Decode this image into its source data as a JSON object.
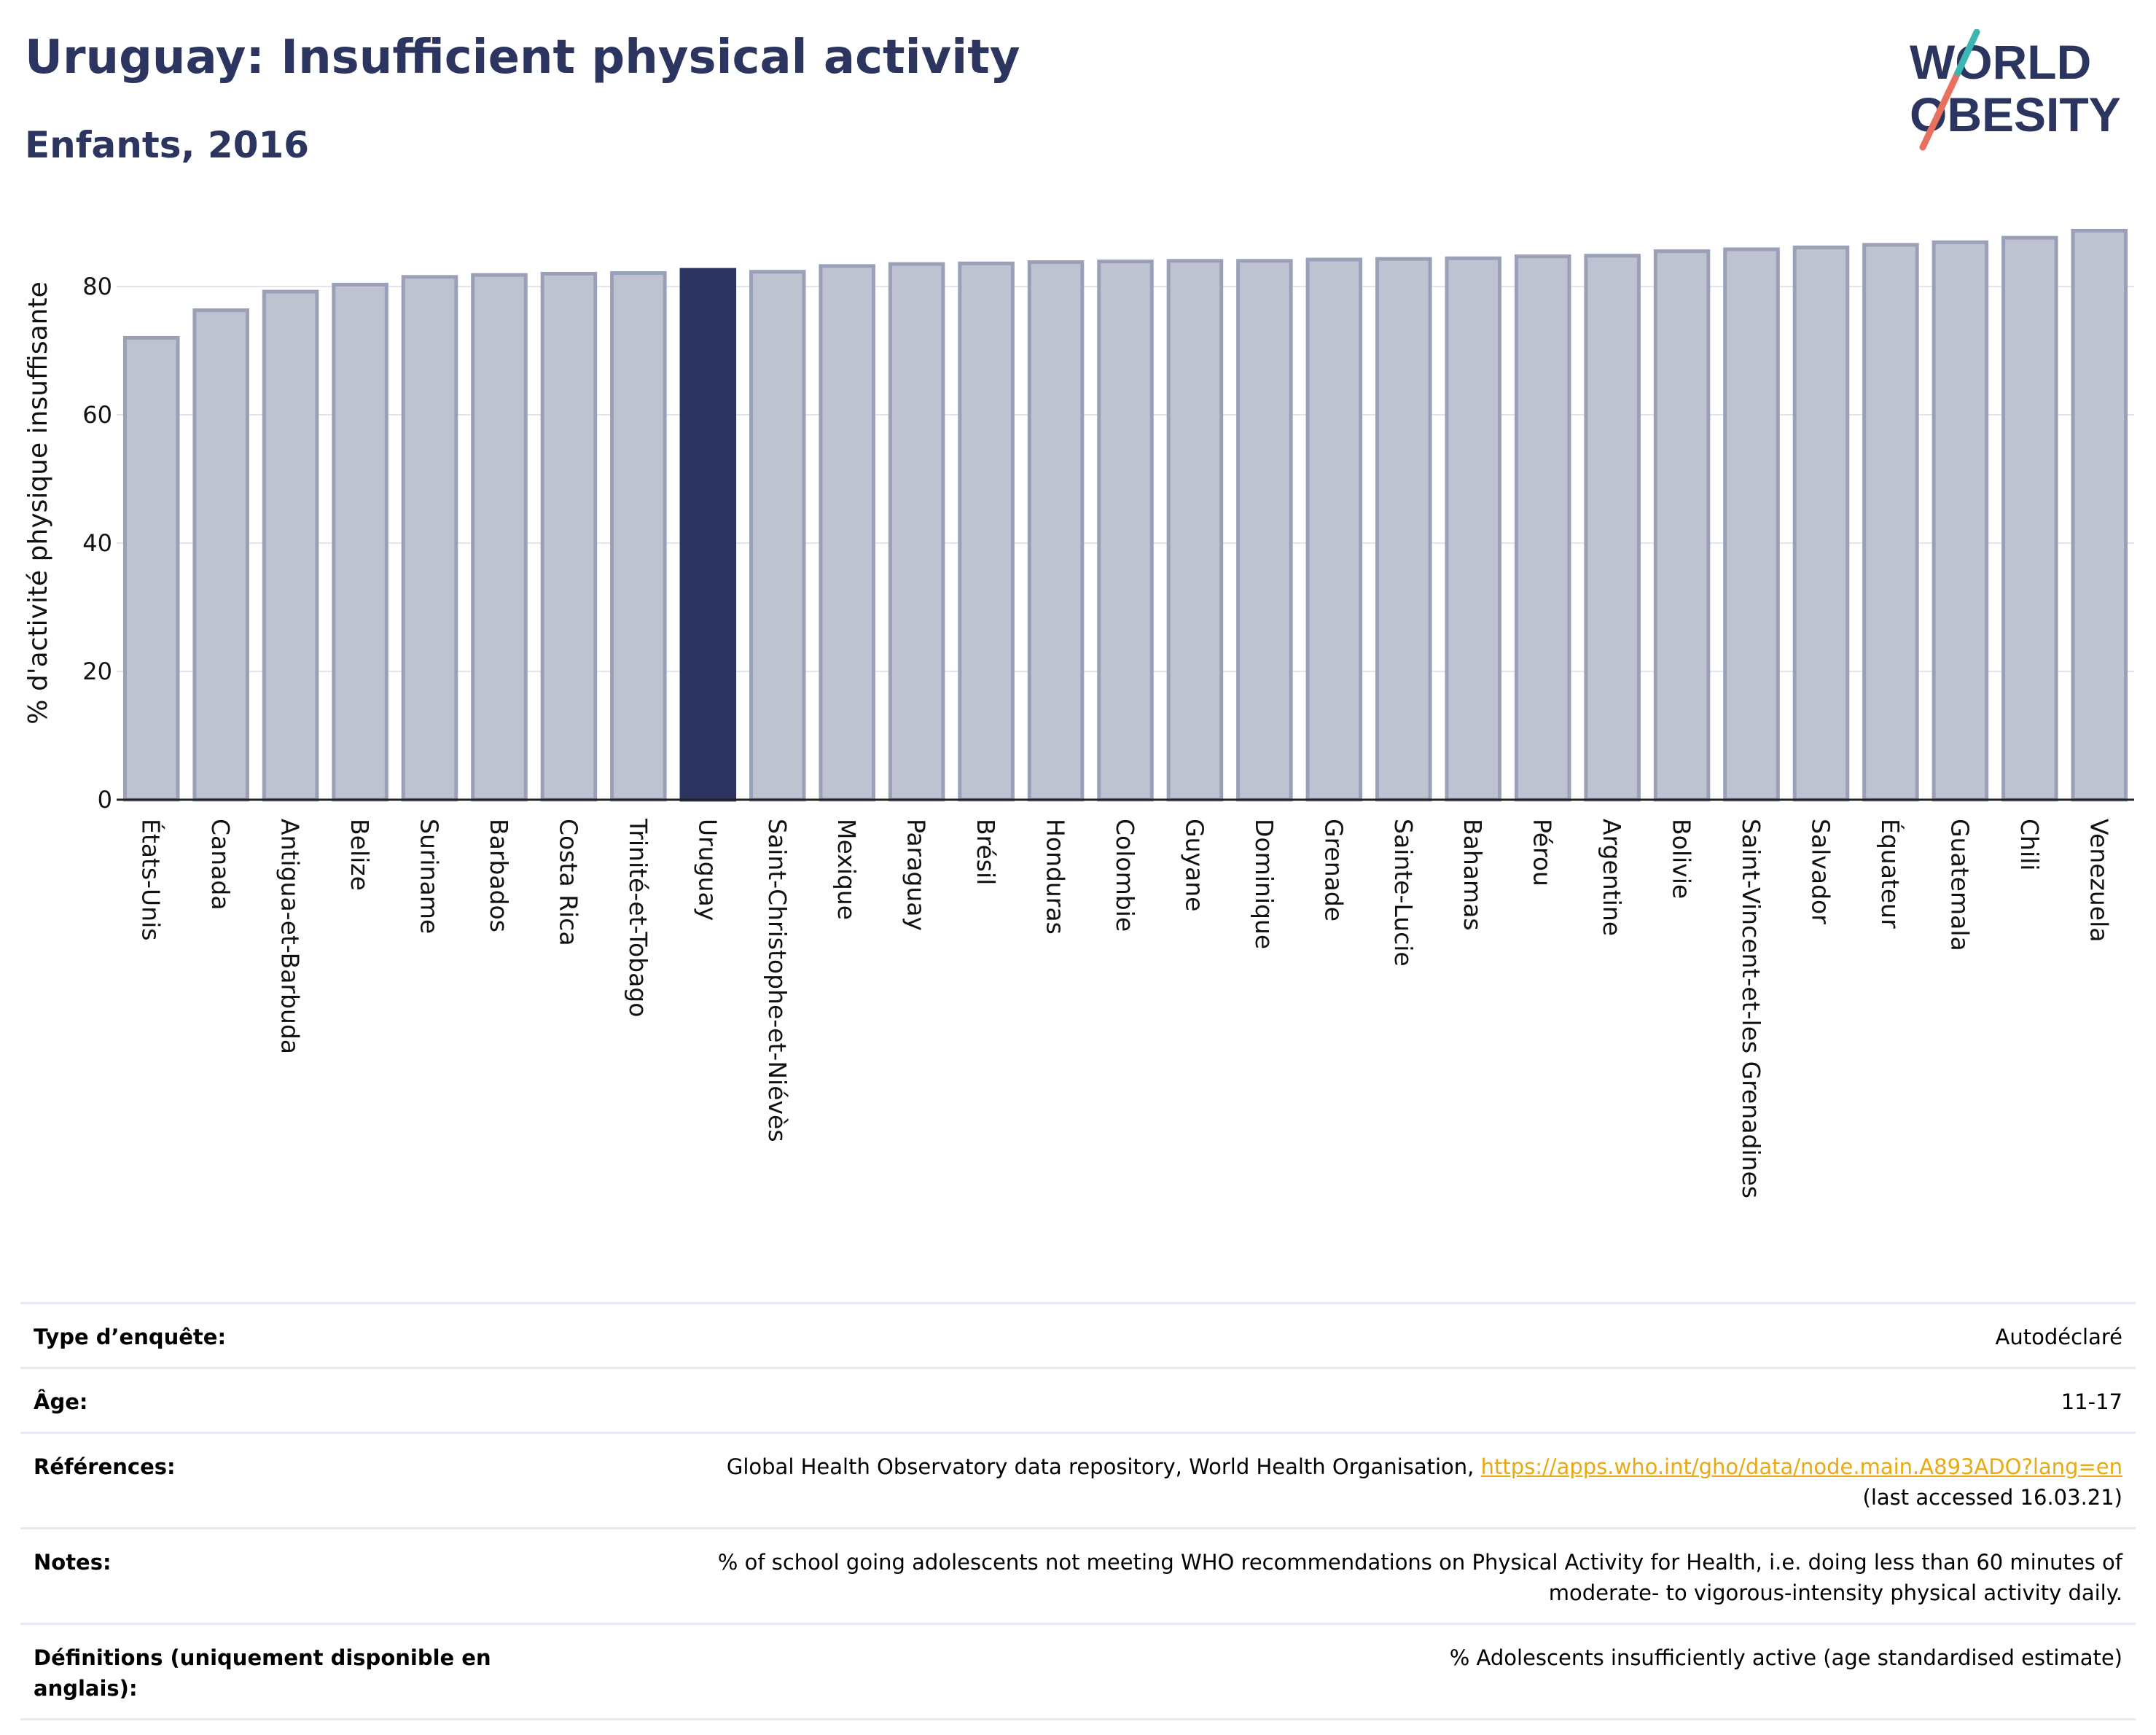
{
  "header": {
    "title": "Uruguay: Insufficient physical activity",
    "subtitle": "Enfants, 2016"
  },
  "logo": {
    "line1": "WORLD",
    "line2": "OBESITY"
  },
  "chart_data": {
    "type": "bar",
    "title": "",
    "xlabel": "",
    "ylabel": "% d'activité physique insuffisante",
    "ylim": [
      0,
      90
    ],
    "yticks": [
      0,
      20,
      40,
      60,
      80
    ],
    "grid": true,
    "highlight": "Uruguay",
    "colors": {
      "bar": "#bfc2d0",
      "bar_edge": "#9aa0b8",
      "highlight": "#2b3560",
      "grid": "#e3e5ec"
    },
    "categories": [
      "États-Unis",
      "Canada",
      "Antigua-et-Barbuda",
      "Belize",
      "Suriname",
      "Barbados",
      "Costa Rica",
      "Trinité-et-Tobago",
      "Uruguay",
      "Saint-Christophe-et-Niévès",
      "Mexique",
      "Paraguay",
      "Brésil",
      "Honduras",
      "Colombie",
      "Guyane",
      "Dominique",
      "Grenade",
      "Sainte-Lucie",
      "Bahamas",
      "Pérou",
      "Argentine",
      "Bolivie",
      "Saint-Vincent-et-les Grenadines",
      "Salvador",
      "Équateur",
      "Guatemala",
      "Chili",
      "Venezuela"
    ],
    "values": [
      72.0,
      76.3,
      79.2,
      80.3,
      81.5,
      81.8,
      82.0,
      82.1,
      82.6,
      82.3,
      83.2,
      83.5,
      83.6,
      83.8,
      83.9,
      84.0,
      84.0,
      84.2,
      84.3,
      84.4,
      84.7,
      84.8,
      85.5,
      85.8,
      86.1,
      86.5,
      86.9,
      87.6,
      88.7
    ]
  },
  "info": {
    "survey_label": "Type d’enquête:",
    "survey_value": "Autodéclaré",
    "age_label": "Âge:",
    "age_value": "11-17",
    "refs_label": "Références:",
    "refs_text": "Global Health Observatory data repository, World Health Organisation,",
    "refs_link": "https://apps.who.int/gho/data/node.main.A893ADO?lang=en",
    "refs_accessed": "(last accessed 16.03.21)",
    "notes_label": "Notes:",
    "notes_line1": "% of school going adolescents not meeting WHO recommendations on Physical Activity for Health, i.e. doing less than 60 minutes of",
    "notes_line2": "moderate- to vigorous-intensity physical activity daily.",
    "defs_label": "Définitions (uniquement disponible en anglais):",
    "defs_value": "% Adolescents insufficiently active (age standardised estimate)"
  }
}
